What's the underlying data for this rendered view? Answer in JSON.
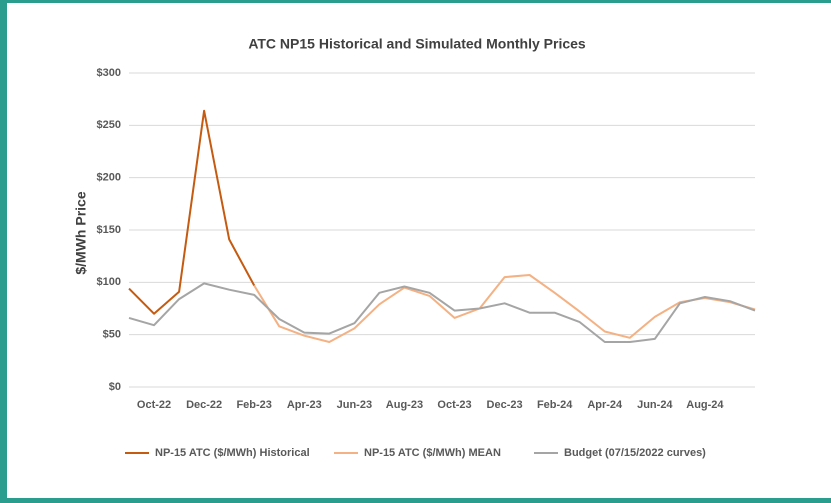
{
  "chart_data": {
    "type": "line",
    "title": "ATC NP15 Historical and Simulated Monthly Prices",
    "ylabel": "$/MWh Price",
    "categories": [
      null,
      "Oct-22",
      null,
      "Dec-22",
      null,
      "Feb-23",
      null,
      "Apr-23",
      null,
      "Jun-23",
      null,
      "Aug-23",
      null,
      "Oct-23",
      null,
      "Dec-23",
      null,
      "Feb-24",
      null,
      "Apr-24",
      null,
      "Jun-24",
      null,
      "Aug-24",
      null,
      null
    ],
    "series": [
      {
        "name": "NP-15 ATC ($/MWh) Historical",
        "color": "#c55a11",
        "values": [
          94,
          70,
          91,
          264,
          141,
          97,
          null,
          null,
          null,
          null,
          null,
          null,
          null,
          null,
          null,
          null,
          null,
          null,
          null,
          null,
          null,
          null,
          null,
          null,
          null,
          null
        ]
      },
      {
        "name": "NP-15 ATC ($/MWh) MEAN",
        "color": "#f4b183",
        "values": [
          null,
          null,
          null,
          null,
          null,
          97,
          58,
          49,
          43,
          56,
          79,
          95,
          87,
          66,
          75,
          105,
          107,
          90,
          72,
          53,
          47,
          67,
          81,
          85,
          81,
          74
        ]
      },
      {
        "name": "Budget (07/15/2022 curves)",
        "color": "#a5a5a5",
        "values": [
          66,
          59,
          84,
          99,
          93,
          88,
          65,
          52,
          51,
          61,
          90,
          96,
          90,
          73,
          75,
          80,
          71,
          71,
          62,
          43,
          43,
          46,
          80,
          86,
          82,
          73
        ]
      }
    ],
    "ylim": [
      0,
      300
    ],
    "yticks": [
      {
        "value": 0,
        "label": "$0"
      },
      {
        "value": 50,
        "label": "$50"
      },
      {
        "value": 100,
        "label": "$100"
      },
      {
        "value": 150,
        "label": "$150"
      },
      {
        "value": 200,
        "label": "$200"
      },
      {
        "value": 250,
        "label": "$250"
      },
      {
        "value": 300,
        "label": "$300"
      }
    ],
    "grid": true,
    "legend": "bottom"
  }
}
